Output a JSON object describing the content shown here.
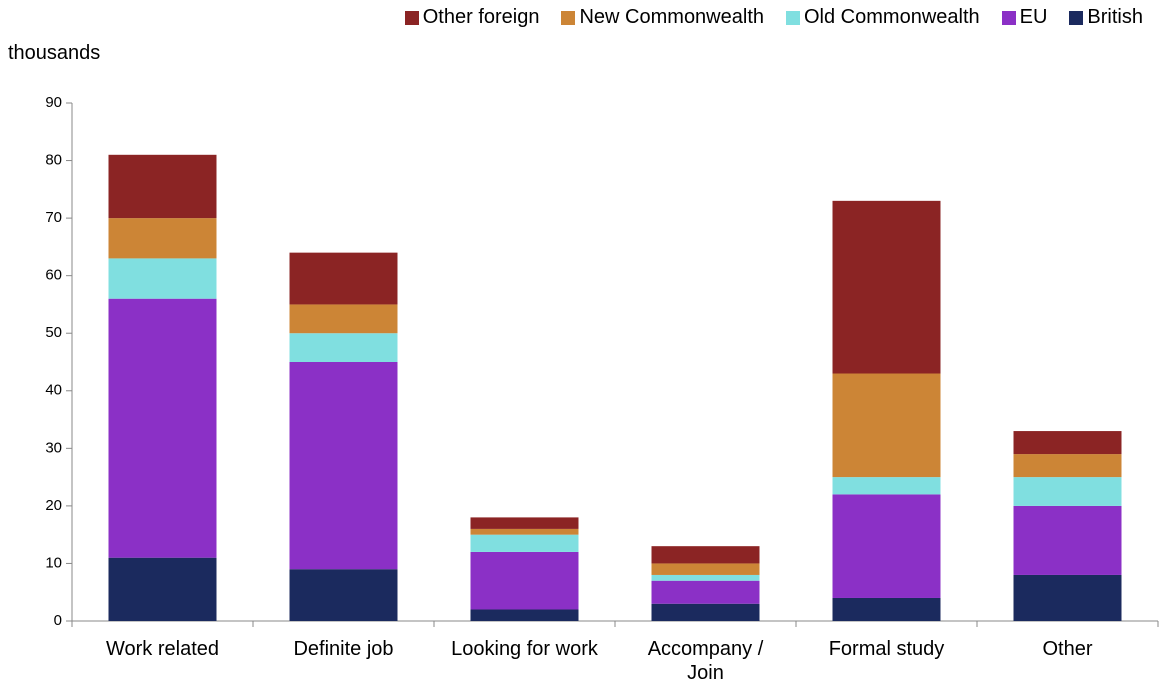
{
  "chart_data": {
    "type": "stacked_bar",
    "y_label": "thousands",
    "categories": [
      "Work related",
      "Definite job",
      "Looking for work",
      "Accompany / Join",
      "Formal study",
      "Other"
    ],
    "series": [
      {
        "name": "British",
        "color": "#1b2a5e",
        "values": [
          11,
          9,
          2,
          3,
          4,
          8
        ]
      },
      {
        "name": "EU",
        "color": "#8b30c6",
        "values": [
          45,
          36,
          10,
          4,
          18,
          12
        ]
      },
      {
        "name": "Old Commonwealth",
        "color": "#80dfe0",
        "values": [
          7,
          5,
          3,
          1,
          3,
          5
        ]
      },
      {
        "name": "New Commonwealth",
        "color": "#cc8536",
        "values": [
          7,
          5,
          1,
          2,
          18,
          4
        ]
      },
      {
        "name": "Other foreign",
        "color": "#8b2424",
        "values": [
          11,
          9,
          2,
          3,
          30,
          4
        ]
      }
    ],
    "ylim": [
      0,
      90
    ],
    "yticks": [
      0,
      10,
      20,
      30,
      40,
      50,
      60,
      70,
      80,
      90
    ],
    "grid": false
  }
}
